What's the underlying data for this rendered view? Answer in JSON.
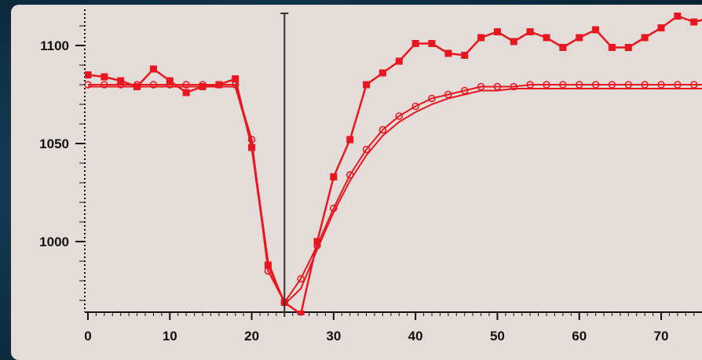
{
  "chart_data": {
    "type": "line",
    "xlim": [
      0,
      75
    ],
    "ylim": [
      965,
      1115
    ],
    "xticks": [
      0,
      10,
      20,
      30,
      40,
      50,
      60,
      70
    ],
    "yticks": [
      1000,
      1050,
      1100
    ],
    "xtick_labels": [
      "0",
      "10",
      "20",
      "30",
      "40",
      "50",
      "60",
      "70"
    ],
    "ytick_labels": [
      "1000",
      "1050",
      "1100"
    ],
    "grid": false,
    "legend": "none",
    "cursor_line_x": 24,
    "colors": {
      "series": "#e8171f",
      "axis": "#111111",
      "plot_background": "#e4dcd9",
      "outer_background": "#0f2f43",
      "cursor": "#333333"
    },
    "series": [
      {
        "marker": "filled-square",
        "x": [
          0,
          2,
          4,
          6,
          8,
          10,
          12,
          14,
          16,
          18,
          20,
          22,
          24,
          26,
          28,
          30,
          32,
          34,
          36,
          38,
          40,
          42,
          44,
          46,
          48,
          50,
          52,
          54,
          56,
          58,
          60,
          62,
          64,
          66,
          68,
          70,
          72,
          74,
          76
        ],
        "values": [
          1085,
          1084,
          1082,
          1079,
          1088,
          1082,
          1076,
          1079,
          1080,
          1083,
          1048,
          988,
          969,
          963,
          1000,
          1033,
          1052,
          1080,
          1086,
          1092,
          1101,
          1101,
          1096,
          1095,
          1104,
          1107,
          1102,
          1107,
          1104,
          1099,
          1104,
          1108,
          1099,
          1099,
          1104,
          1109,
          1115,
          1112,
          1114
        ]
      },
      {
        "marker": "open-circle",
        "x": [
          0,
          2,
          4,
          6,
          8,
          10,
          12,
          14,
          16,
          18,
          20,
          22,
          24,
          26,
          28,
          30,
          32,
          34,
          36,
          38,
          40,
          42,
          44,
          46,
          48,
          50,
          52,
          54,
          56,
          58,
          60,
          62,
          64,
          66,
          68,
          70,
          72,
          74,
          76
        ],
        "values": [
          1080,
          1080,
          1080,
          1080,
          1080,
          1080,
          1080,
          1080,
          1080,
          1080,
          1052,
          985,
          969,
          981,
          998,
          1017,
          1034,
          1047,
          1057,
          1064,
          1069,
          1073,
          1075,
          1077,
          1079,
          1079,
          1079,
          1080,
          1080,
          1080,
          1080,
          1080,
          1080,
          1080,
          1080,
          1080,
          1080,
          1080,
          1080
        ]
      },
      {
        "marker": "none",
        "x": [
          0,
          2,
          4,
          6,
          8,
          10,
          12,
          14,
          16,
          18,
          20,
          22,
          24,
          26,
          28,
          30,
          32,
          34,
          36,
          38,
          40,
          42,
          44,
          46,
          48,
          50,
          52,
          54,
          56,
          58,
          60,
          62,
          64,
          66,
          68,
          70,
          72,
          74,
          76
        ],
        "values": [
          1079,
          1079,
          1079,
          1079,
          1079,
          1079,
          1079,
          1079,
          1079,
          1079,
          1050,
          990,
          968,
          976,
          996,
          1015,
          1031,
          1044,
          1054,
          1061,
          1066,
          1070,
          1073,
          1075,
          1077,
          1077,
          1078,
          1078,
          1078,
          1078,
          1078,
          1078,
          1078,
          1078,
          1078,
          1078,
          1078,
          1078,
          1078
        ]
      }
    ]
  }
}
